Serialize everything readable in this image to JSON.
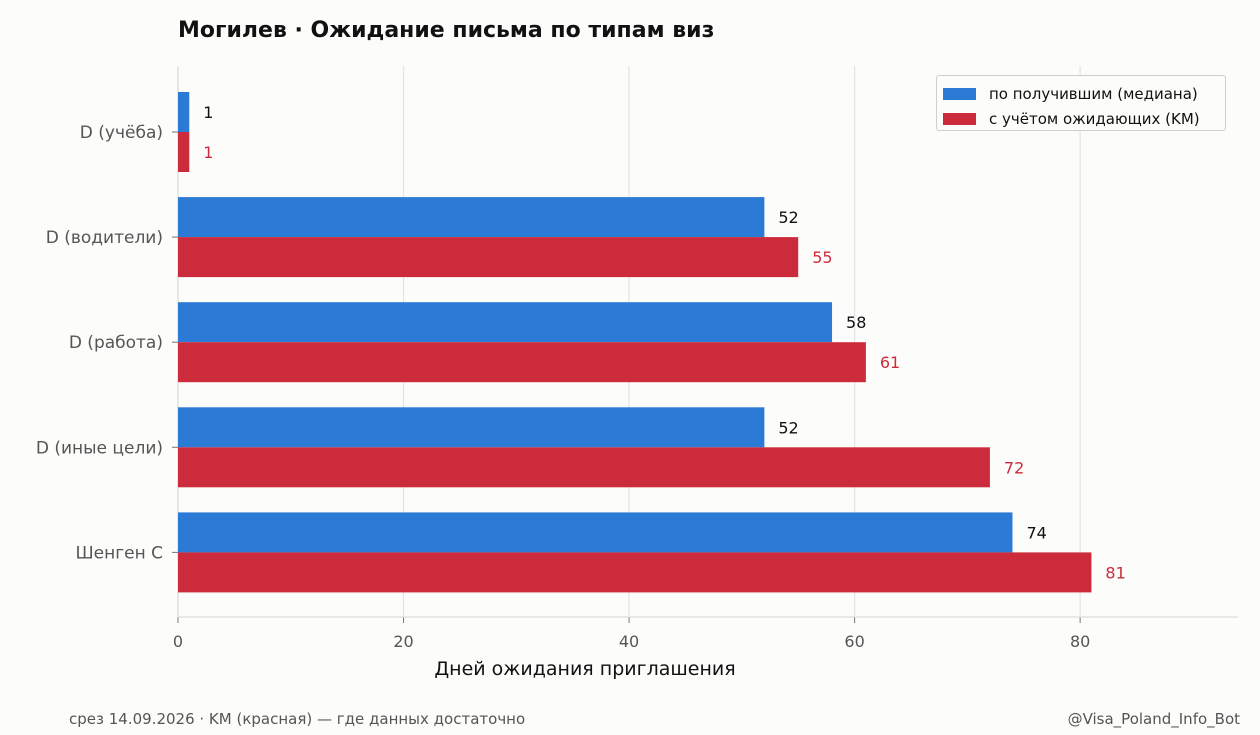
{
  "title": "Могилев · Ожидание письма по типам виз",
  "footer": {
    "left": "срез 14.09.2026 · KM (красная) — где данных достаточно",
    "right": "@Visa_Poland_Info_Bot"
  },
  "colors": {
    "series_received": "#2b7ad6",
    "series_km": "#cc2b3b",
    "grid": "#e4e4e4",
    "axis_text": "#555555"
  },
  "chart_data": {
    "type": "bar",
    "orientation": "horizontal",
    "categories": [
      "D (учёба)",
      "D (водители)",
      "D (работа)",
      "D (иные цели)",
      "Шенген C"
    ],
    "series": [
      {
        "name": "по получившим (медиана)",
        "values": [
          1,
          52,
          58,
          52,
          74
        ]
      },
      {
        "name": "с учётом ожидающих (KM)",
        "values": [
          1,
          55,
          61,
          72,
          81
        ]
      }
    ],
    "xlabel": "Дней ожидания приглашения",
    "ylabel": "",
    "xlim": [
      0,
      94
    ],
    "xticks": [
      "0",
      "20",
      "40",
      "60",
      "80"
    ],
    "grid": true,
    "legend_position": "top-right"
  }
}
